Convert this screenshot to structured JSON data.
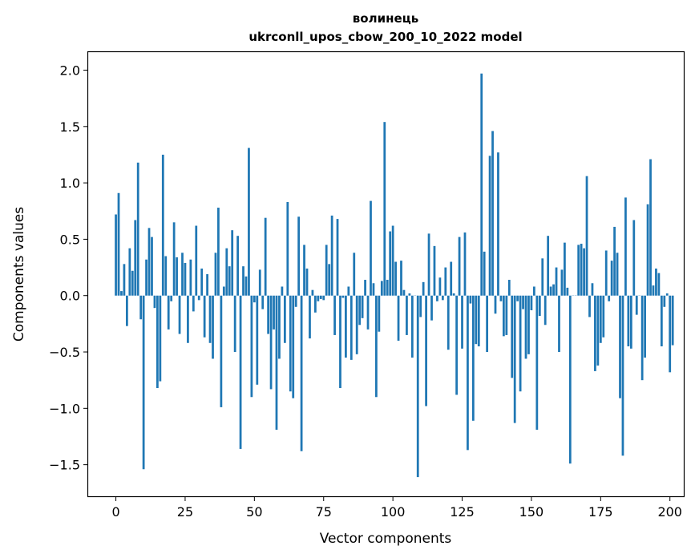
{
  "chart_data": {
    "type": "bar",
    "title": "волинець",
    "subtitle": "ukrconll_upos_cbow_200_10_2022 model",
    "xlabel": "Vector components",
    "ylabel": "Components values",
    "xlim": [
      -10,
      205
    ],
    "ylim": [
      -1.78,
      2.16
    ],
    "xticks": [
      0,
      25,
      50,
      75,
      100,
      125,
      150,
      175,
      200
    ],
    "xtick_labels": [
      "0",
      "25",
      "50",
      "75",
      "100",
      "125",
      "150",
      "175",
      "200"
    ],
    "yticks": [
      -1.5,
      -1.0,
      -0.5,
      0.0,
      0.5,
      1.0,
      1.5,
      2.0
    ],
    "ytick_labels": [
      "−1.5",
      "−1.0",
      "−0.5",
      "0.0",
      "0.5",
      "1.0",
      "1.5",
      "2.0"
    ],
    "bar_color": "#1f77b4",
    "grid": false,
    "values": [
      0.72,
      0.91,
      0.04,
      0.28,
      -0.27,
      0.42,
      0.22,
      0.67,
      1.18,
      -0.21,
      -1.54,
      0.32,
      0.6,
      0.52,
      -0.11,
      -0.82,
      -0.76,
      1.25,
      0.35,
      -0.3,
      -0.05,
      0.65,
      0.34,
      -0.34,
      0.38,
      0.29,
      -0.42,
      0.32,
      -0.14,
      0.62,
      -0.04,
      0.24,
      -0.37,
      0.19,
      -0.42,
      -0.56,
      0.38,
      0.78,
      -0.99,
      0.08,
      0.42,
      0.26,
      0.58,
      -0.5,
      0.53,
      -1.36,
      0.26,
      0.17,
      1.31,
      -0.9,
      -0.06,
      -0.79,
      0.23,
      -0.12,
      0.69,
      -0.34,
      -0.83,
      -0.3,
      -1.19,
      -0.56,
      0.08,
      -0.42,
      0.83,
      -0.85,
      -0.91,
      -0.1,
      0.7,
      -1.38,
      0.45,
      0.24,
      -0.38,
      0.05,
      -0.15,
      -0.05,
      -0.03,
      -0.04,
      0.45,
      0.28,
      0.71,
      -0.35,
      0.68,
      -0.82,
      -0.02,
      -0.55,
      0.08,
      -0.57,
      0.38,
      -0.52,
      -0.26,
      -0.2,
      0.14,
      -0.3,
      0.84,
      0.11,
      -0.9,
      -0.32,
      0.13,
      1.54,
      0.14,
      0.57,
      0.62,
      0.3,
      -0.4,
      0.31,
      0.05,
      -0.35,
      0.02,
      -0.55,
      0.0,
      -1.61,
      -0.19,
      0.12,
      -0.98,
      0.55,
      -0.22,
      0.44,
      -0.05,
      0.16,
      -0.04,
      0.25,
      -0.48,
      0.3,
      0.02,
      -0.88,
      0.52,
      -0.47,
      0.56,
      -1.37,
      -0.07,
      -1.11,
      -0.43,
      -0.45,
      1.97,
      0.39,
      -0.5,
      1.24,
      1.46,
      -0.16,
      1.27,
      -0.05,
      -0.36,
      -0.35,
      0.14,
      -0.73,
      -1.13,
      -0.05,
      -0.85,
      -0.12,
      -0.56,
      -0.52,
      -0.13,
      0.08,
      -1.19,
      -0.18,
      0.33,
      -0.26,
      0.53,
      0.08,
      0.1,
      0.25,
      -0.5,
      0.23,
      0.47,
      0.07,
      -1.49,
      0.0,
      0.0,
      0.45,
      0.46,
      0.42,
      1.06,
      -0.19,
      0.11,
      -0.67,
      -0.62,
      -0.42,
      -0.37,
      0.4,
      -0.05,
      0.31,
      0.61,
      0.38,
      -0.91,
      -1.42,
      0.87,
      -0.45,
      -0.47,
      0.67,
      -0.17,
      0.0,
      -0.75,
      -0.55,
      0.81,
      1.21,
      0.09,
      0.24,
      0.2,
      -0.45,
      -0.1,
      0.02,
      -0.68,
      -0.44
    ]
  }
}
